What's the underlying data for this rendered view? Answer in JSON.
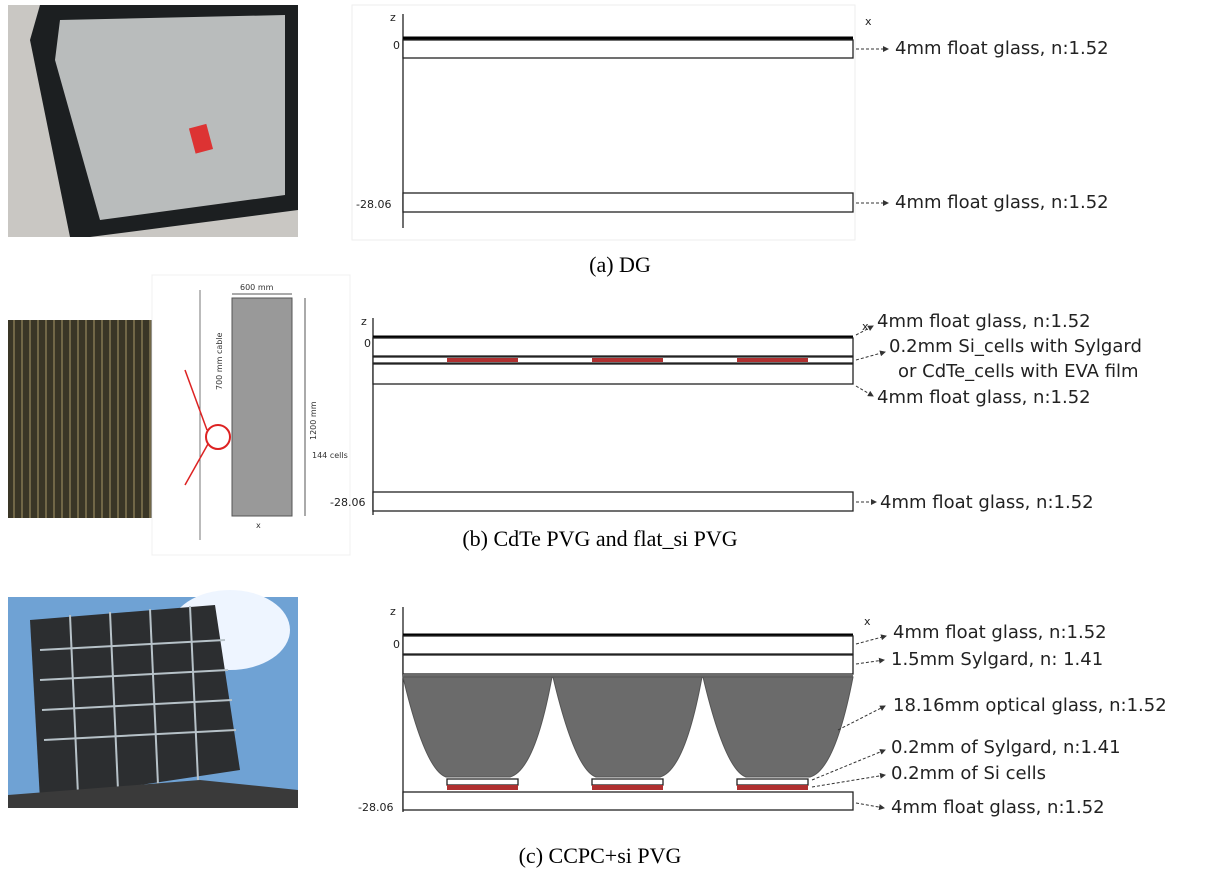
{
  "panels": [
    {
      "caption": "(a)  DG",
      "axis": {
        "z": "z",
        "x": "x",
        "top": "0",
        "bottom": "-28.06"
      },
      "labels": [
        "4mm float glass, n:1.52",
        "4mm float glass, n:1.52"
      ]
    },
    {
      "caption": "(b)  CdTe PVG and flat_si PVG",
      "axis": {
        "z": "z",
        "x": "x",
        "top": "0",
        "bottom": "-28.06"
      },
      "labels": [
        "4mm float glass, n:1.52",
        "0.2mm Si_cells with Sylgard",
        "or CdTe_cells with EVA film",
        "4mm float glass, n:1.52",
        "4mm float glass, n:1.52"
      ],
      "drawing": {
        "width": "600 mm",
        "cable": "700 mm cable",
        "height": "1200 mm",
        "cells": "144 cells",
        "x": "x"
      }
    },
    {
      "caption": "(c) CCPC+si PVG",
      "axis": {
        "z": "z",
        "x": "x",
        "top": "0",
        "bottom": "-28.06"
      },
      "labels": [
        "4mm float glass, n:1.52",
        "1.5mm Sylgard, n: 1.41",
        "18.16mm optical glass, n:1.52",
        "0.2mm of Sylgard, n:1.41",
        "0.2mm of Si cells",
        "4mm float glass, n:1.52"
      ]
    }
  ]
}
